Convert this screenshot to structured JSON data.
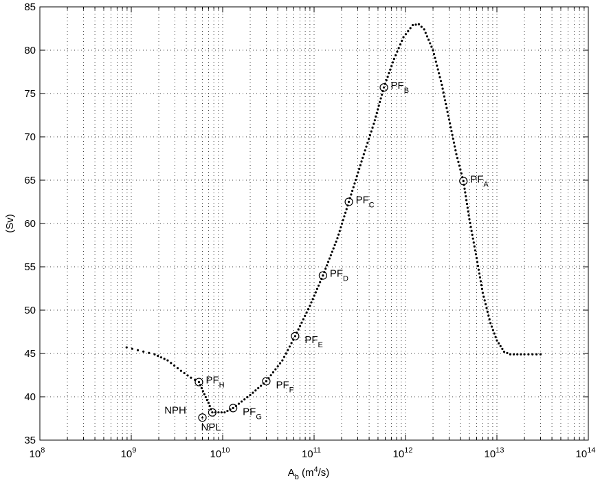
{
  "chart_data": {
    "type": "scatter",
    "title": "",
    "xlabel_base": "A",
    "xlabel_sub": "b",
    "xlabel_unit_a": " (m",
    "xlabel_sup": "4",
    "xlabel_unit_b": "/s)",
    "ylabel": "(Sv)",
    "xscale": "log",
    "xlim": [
      100000000.0,
      100000000000000.0
    ],
    "ylim": [
      35,
      85
    ],
    "x_ticks": [
      {
        "value": 100000000.0,
        "base": "10",
        "exp": "8"
      },
      {
        "value": 1000000000.0,
        "base": "10",
        "exp": "9"
      },
      {
        "value": 10000000000.0,
        "base": "10",
        "exp": "10"
      },
      {
        "value": 100000000000.0,
        "base": "10",
        "exp": "11"
      },
      {
        "value": 1000000000000.0,
        "base": "10",
        "exp": "12"
      },
      {
        "value": 10000000000000.0,
        "base": "10",
        "exp": "13"
      },
      {
        "value": 100000000000000.0,
        "base": "10",
        "exp": "14"
      }
    ],
    "y_ticks": [
      35,
      40,
      45,
      50,
      55,
      60,
      65,
      70,
      75,
      80,
      85
    ],
    "grid": true,
    "curve_knots": [
      [
        890000000.0,
        45.7
      ],
      [
        1800000000.0,
        44.9
      ],
      [
        2500000000.0,
        44.2
      ],
      [
        3500000000.0,
        43.0
      ],
      [
        4500000000.0,
        42.2
      ],
      [
        5500000000.0,
        41.7
      ],
      [
        6300000000.0,
        40.3
      ],
      [
        7000000000.0,
        39.3
      ],
      [
        7700000000.0,
        38.2
      ],
      [
        9000000000.0,
        38.2
      ],
      [
        10500000000.0,
        38.2
      ],
      [
        13000000000.0,
        38.7
      ],
      [
        20000000000.0,
        40.2
      ],
      [
        30000000000.0,
        41.8
      ],
      [
        45000000000.0,
        44.2
      ],
      [
        62000000000.0,
        47.0
      ],
      [
        90000000000.0,
        50.5
      ],
      [
        125000000000.0,
        54.0
      ],
      [
        180000000000.0,
        58.3
      ],
      [
        240000000000.0,
        62.5
      ],
      [
        350000000000.0,
        68.0
      ],
      [
        450000000000.0,
        71.5
      ],
      [
        580000000000.0,
        75.7
      ],
      [
        750000000000.0,
        79.0
      ],
      [
        950000000000.0,
        81.5
      ],
      [
        1200000000000.0,
        82.9
      ],
      [
        1400000000000.0,
        83.0
      ],
      [
        1600000000000.0,
        82.4
      ],
      [
        2000000000000.0,
        80.0
      ],
      [
        2500000000000.0,
        76.0
      ],
      [
        3000000000000.0,
        72.0
      ],
      [
        3600000000000.0,
        68.0
      ],
      [
        4300000000000.0,
        64.9
      ],
      [
        5000000000000.0,
        60.5
      ],
      [
        6000000000000.0,
        56.0
      ],
      [
        7000000000000.0,
        52.0
      ],
      [
        8500000000000.0,
        48.5
      ],
      [
        10000000000000.0,
        46.5
      ],
      [
        12000000000000.0,
        45.2
      ],
      [
        14000000000000.0,
        44.9
      ],
      [
        20000000000000.0,
        44.9
      ],
      [
        30000000000000.0,
        44.9
      ]
    ],
    "annotations": [
      {
        "name": "PF_A",
        "x": 4300000000000.0,
        "y": 64.9,
        "base": "PF",
        "sub": "A",
        "offset": "right"
      },
      {
        "name": "PF_B",
        "x": 580000000000.0,
        "y": 75.7,
        "base": "PF",
        "sub": "B",
        "offset": "right"
      },
      {
        "name": "PF_C",
        "x": 240000000000.0,
        "y": 62.5,
        "base": "PF",
        "sub": "C",
        "offset": "right"
      },
      {
        "name": "PF_D",
        "x": 125000000000.0,
        "y": 54.0,
        "base": "PF",
        "sub": "D",
        "offset": "right"
      },
      {
        "name": "PF_E",
        "x": 62000000000.0,
        "y": 47.0,
        "base": "PF",
        "sub": "E",
        "offset": "right-low"
      },
      {
        "name": "PF_F",
        "x": 30000000000.0,
        "y": 41.8,
        "base": "PF",
        "sub": "F",
        "offset": "right-low"
      },
      {
        "name": "PF_G",
        "x": 13000000000.0,
        "y": 38.7,
        "base": "PF",
        "sub": "G",
        "offset": "right-low"
      },
      {
        "name": "PF_H",
        "x": 5500000000.0,
        "y": 41.7,
        "base": "PF",
        "sub": "H",
        "offset": "right"
      },
      {
        "name": "NPH",
        "x": 7700000000.0,
        "y": 38.2,
        "base": "NPH",
        "sub": "",
        "offset": "left"
      },
      {
        "name": "NPL",
        "x": 6000000000.0,
        "y": 37.6,
        "base": "NPL",
        "sub": "",
        "offset": "below"
      }
    ]
  }
}
